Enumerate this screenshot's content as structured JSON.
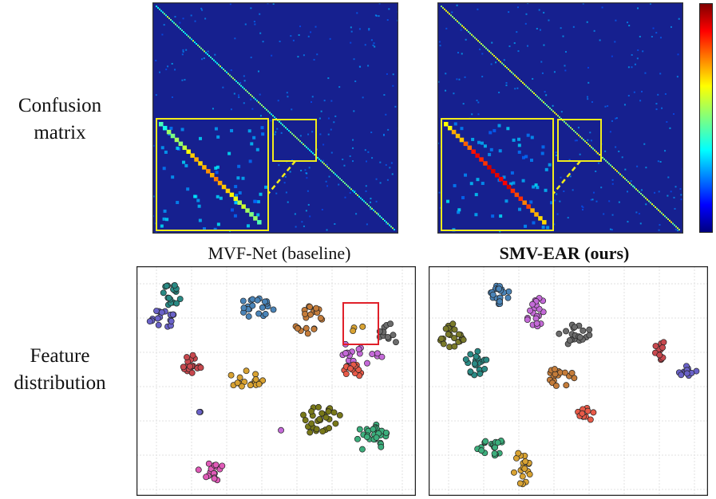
{
  "row_labels": {
    "confusion": [
      "Confusion",
      "matrix"
    ],
    "feature": [
      "Feature",
      "distribution"
    ]
  },
  "captions": {
    "baseline": "MVF-Net (baseline)",
    "ours": "SMV-EAR (ours)"
  },
  "colors": {
    "matrix_bg": "#16208f",
    "highlight_box": "#f2ec1c",
    "zoom_box_red": "#e0202a",
    "scatter_border": "#222222",
    "grid": "#e2e2e2"
  },
  "colorbar": {
    "colormap": "jet"
  },
  "cluster_colors": [
    "#2a8a84",
    "#6a62c8",
    "#4a84b8",
    "#c47c3a",
    "#c46ad8",
    "#6c6c6c",
    "#c8484e",
    "#d8a232",
    "#e85a48",
    "#787818",
    "#3cae7c",
    "#e05ab8",
    "#7a7a2a"
  ]
}
